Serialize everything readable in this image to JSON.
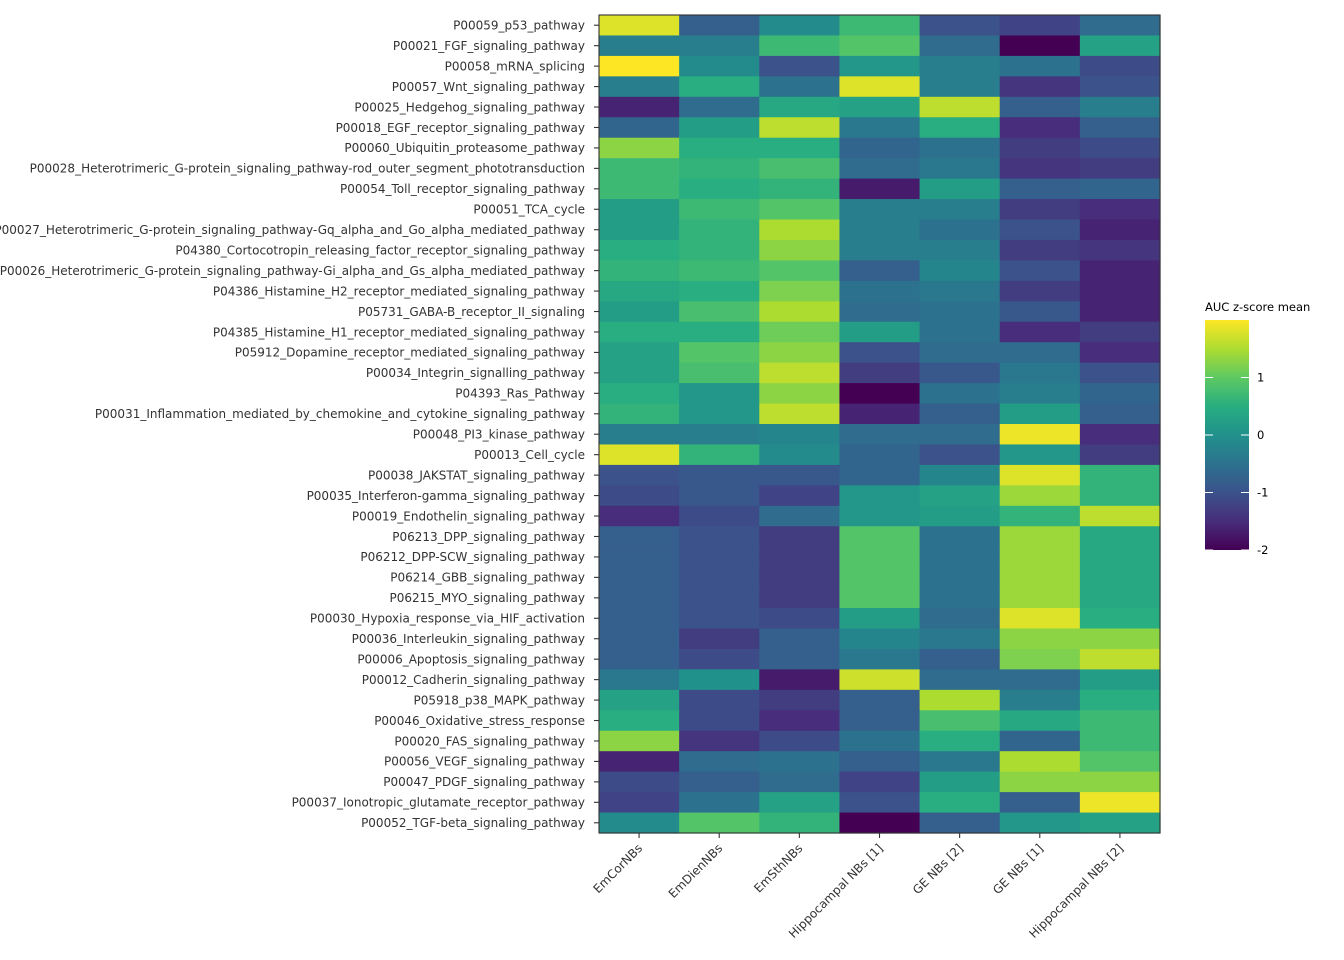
{
  "chart_data": {
    "type": "heatmap",
    "title": "",
    "xlabel": "",
    "ylabel": "",
    "columns": [
      "EmCorNBs",
      "EmDienNBs",
      "EmSthNBs",
      "Hippocampal NBs [1]",
      "GE NBs [2]",
      "GE NBs [1]",
      "Hippocampal NBs [2]"
    ],
    "rows": [
      "P00059_p53_pathway",
      "P00021_FGF_signaling_pathway",
      "P00058_mRNA_splicing",
      "P00057_Wnt_signaling_pathway",
      "P00025_Hedgehog_signaling_pathway",
      "P00018_EGF_receptor_signaling_pathway",
      "P00060_Ubiquitin_proteasome_pathway",
      "P00028_Heterotrimeric_G-protein_signaling_pathway-rod_outer_segment_phototransduction",
      "P00054_Toll_receptor_signaling_pathway",
      "P00051_TCA_cycle",
      "P00027_Heterotrimeric_G-protein_signaling_pathway-Gq_alpha_and_Go_alpha_mediated_pathway",
      "P04380_Cortocotropin_releasing_factor_receptor_signaling_pathway",
      "P00026_Heterotrimeric_G-protein_signaling_pathway-Gi_alpha_and_Gs_alpha_mediated_pathway",
      "P04386_Histamine_H2_receptor_mediated_signaling_pathway",
      "P05731_GABA-B_receptor_II_signaling",
      "P04385_Histamine_H1_receptor_mediated_signaling_pathway",
      "P05912_Dopamine_receptor_mediated_signaling_pathway",
      "P00034_Integrin_signalling_pathway",
      "P04393_Ras_Pathway",
      "P00031_Inflammation_mediated_by_chemokine_and_cytokine_signaling_pathway",
      "P00048_PI3_kinase_pathway",
      "P00013_Cell_cycle",
      "P00038_JAKSTAT_signaling_pathway",
      "P00035_Interferon-gamma_signaling_pathway",
      "P00019_Endothelin_signaling_pathway",
      "P06213_DPP_signaling_pathway",
      "P06212_DPP-SCW_signaling_pathway",
      "P06214_GBB_signaling_pathway",
      "P06215_MYO_signaling_pathway",
      "P00030_Hypoxia_response_via_HIF_activation",
      "P00036_Interleukin_signaling_pathway",
      "P00006_Apoptosis_signaling_pathway",
      "P00012_Cadherin_signaling_pathway",
      "P05918_p38_MAPK_pathway",
      "P00046_Oxidative_stress_response",
      "P00020_FAS_signaling_pathway",
      "P00056_VEGF_signaling_pathway",
      "P00047_PDGF_signaling_pathway",
      "P00037_Ionotropic_glutamate_receptor_pathway",
      "P00052_TGF-beta_signaling_pathway"
    ],
    "values": [
      [
        1.8,
        -0.8,
        -0.1,
        0.7,
        -1.0,
        -1.2,
        -0.6
      ],
      [
        -0.3,
        -0.3,
        0.7,
        0.9,
        -0.6,
        -2.0,
        0.3
      ],
      [
        2.0,
        -0.1,
        -1.0,
        0.1,
        -0.3,
        -0.5,
        -1.1
      ],
      [
        -0.3,
        0.5,
        -0.5,
        1.8,
        -0.3,
        -1.4,
        -1.0
      ],
      [
        -1.6,
        -0.6,
        0.4,
        0.3,
        1.6,
        -0.8,
        -0.3
      ],
      [
        -0.7,
        0.2,
        1.6,
        -0.4,
        0.5,
        -1.5,
        -0.8
      ],
      [
        1.3,
        0.5,
        0.5,
        -0.7,
        -0.5,
        -1.3,
        -1.1
      ],
      [
        0.7,
        0.6,
        0.8,
        -0.6,
        -0.4,
        -1.4,
        -1.3
      ],
      [
        0.7,
        0.5,
        0.6,
        -1.7,
        0.2,
        -0.8,
        -0.7
      ],
      [
        0.2,
        0.7,
        0.9,
        -0.3,
        -0.3,
        -1.3,
        -1.5
      ],
      [
        0.2,
        0.6,
        1.5,
        -0.3,
        -0.5,
        -1.0,
        -1.6
      ],
      [
        0.5,
        0.6,
        1.3,
        -0.3,
        -0.3,
        -1.3,
        -1.4
      ],
      [
        0.6,
        0.7,
        0.9,
        -0.8,
        -0.2,
        -1.0,
        -1.6
      ],
      [
        0.4,
        0.5,
        1.2,
        -0.5,
        -0.4,
        -1.3,
        -1.6
      ],
      [
        0.2,
        0.8,
        1.5,
        -0.6,
        -0.5,
        -0.9,
        -1.6
      ],
      [
        0.5,
        0.5,
        1.1,
        0.2,
        -0.5,
        -1.5,
        -1.3
      ],
      [
        0.3,
        0.9,
        1.3,
        -1.0,
        -0.6,
        -0.6,
        -1.5
      ],
      [
        0.3,
        0.8,
        1.6,
        -1.3,
        -0.9,
        -0.4,
        -1.0
      ],
      [
        0.5,
        0.1,
        1.3,
        -2.0,
        -0.5,
        -0.3,
        -0.7
      ],
      [
        0.6,
        0.1,
        1.6,
        -1.6,
        -0.8,
        0.2,
        -0.8
      ],
      [
        -0.3,
        -0.3,
        -0.2,
        -0.6,
        -0.6,
        1.9,
        -1.5
      ],
      [
        1.8,
        0.6,
        -0.1,
        -0.7,
        -1.0,
        0.1,
        -1.3
      ],
      [
        -1.0,
        -0.9,
        -0.9,
        -0.7,
        -0.2,
        1.8,
        0.6
      ],
      [
        -1.1,
        -0.9,
        -1.2,
        0.1,
        0.3,
        1.4,
        0.6
      ],
      [
        -1.5,
        -1.1,
        -0.6,
        0.1,
        0.2,
        0.6,
        1.6
      ],
      [
        -0.8,
        -1.0,
        -1.3,
        0.9,
        -0.5,
        1.4,
        0.4
      ],
      [
        -0.8,
        -1.0,
        -1.3,
        0.9,
        -0.5,
        1.4,
        0.4
      ],
      [
        -0.8,
        -1.0,
        -1.3,
        0.9,
        -0.5,
        1.4,
        0.4
      ],
      [
        -0.8,
        -1.0,
        -1.3,
        0.9,
        -0.5,
        1.4,
        0.4
      ],
      [
        -0.8,
        -1.0,
        -1.1,
        0.2,
        -0.6,
        1.8,
        0.5
      ],
      [
        -0.8,
        -1.3,
        -0.8,
        -0.2,
        -0.4,
        1.3,
        1.3
      ],
      [
        -0.8,
        -1.1,
        -0.8,
        -0.4,
        -0.8,
        1.2,
        1.6
      ],
      [
        -0.4,
        0.0,
        -1.7,
        1.7,
        -0.6,
        -0.6,
        0.2
      ],
      [
        0.3,
        -1.1,
        -1.3,
        -0.8,
        1.5,
        -0.3,
        0.5
      ],
      [
        0.5,
        -1.1,
        -1.5,
        -0.8,
        0.8,
        0.4,
        0.7
      ],
      [
        1.3,
        -1.4,
        -1.1,
        -0.5,
        0.5,
        -0.7,
        0.7
      ],
      [
        -1.6,
        -0.6,
        -0.5,
        -0.8,
        -0.4,
        1.5,
        0.9
      ],
      [
        -1.1,
        -0.8,
        -0.6,
        -1.2,
        0.2,
        1.3,
        1.3
      ],
      [
        -1.2,
        -0.5,
        0.3,
        -1.0,
        0.5,
        -0.8,
        1.9
      ],
      [
        -0.1,
        0.9,
        0.6,
        -2.0,
        -0.8,
        0.1,
        0.3
      ]
    ],
    "legend": {
      "title": "AUC z-score mean",
      "position": "right",
      "ticks": [
        -2,
        -1,
        0,
        1
      ],
      "tick_labels": [
        "-2",
        "-1",
        "0",
        "1"
      ],
      "range": [
        -2,
        2
      ]
    },
    "colormap": "viridis"
  }
}
